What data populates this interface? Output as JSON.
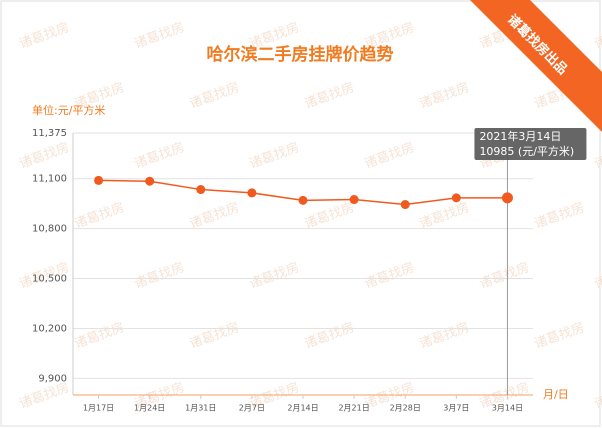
{
  "chart_data": {
    "type": "line",
    "title": "哈尔滨二手房挂牌价趋势",
    "y_axis_label": "单位:元/平方米",
    "x_axis_label": "月/日",
    "badge": "诸葛找房出品",
    "watermark": "诸葛找房",
    "categories": [
      "1月17日",
      "1月24日",
      "1月31日",
      "2月7日",
      "2月14日",
      "2月21日",
      "2月28日",
      "3月7日",
      "3月14日"
    ],
    "series": [
      {
        "name": "挂牌价",
        "color": "#f05a1e",
        "values": [
          11090,
          11085,
          11035,
          11015,
          10970,
          10975,
          10945,
          10985,
          10985
        ]
      }
    ],
    "ylim": [
      9800,
      11375
    ],
    "yticks": [
      {
        "value": 9900,
        "label": "9,900"
      },
      {
        "value": 10200,
        "label": "10,200"
      },
      {
        "value": 10500,
        "label": "10,500"
      },
      {
        "value": 10800,
        "label": "10,800"
      },
      {
        "value": 11100,
        "label": "11,100"
      },
      {
        "value": 11375,
        "label": "11,375"
      }
    ],
    "grid": true,
    "tooltip": {
      "date": "2021年3月14日",
      "value_text": "10985 (元/平方米)"
    }
  }
}
